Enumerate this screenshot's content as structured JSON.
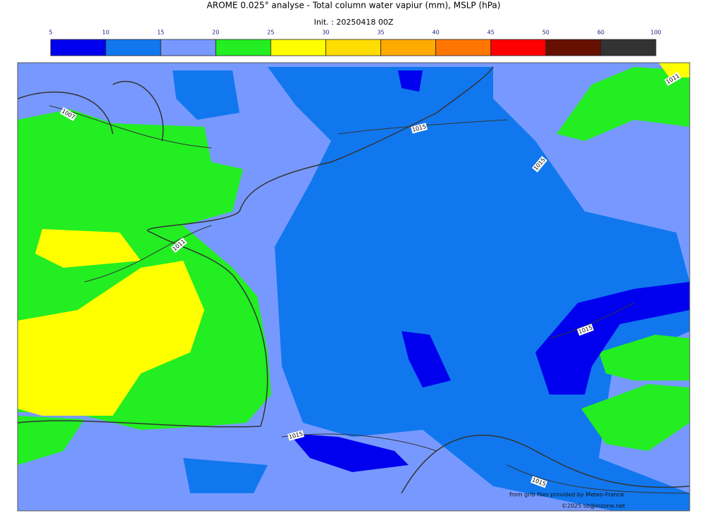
{
  "title": "AROME 0.025° analyse - Total column water vapiur (mm), MSLP (hPa)",
  "subtitle": "Init. : 20250418 00Z",
  "colorbar": {
    "bounds": [
      5,
      10,
      15,
      20,
      25,
      30,
      35,
      40,
      45,
      50,
      60,
      100
    ],
    "colors": [
      "#0000ee",
      "#1177ee",
      "#7799ff",
      "#22ee22",
      "#ffff00",
      "#ffdd00",
      "#ffaa00",
      "#ff7700",
      "#ff0000",
      "#661100",
      "#333333"
    ]
  },
  "isobar_labels": [
    "1007",
    "1011",
    "1015",
    "1015",
    "1011",
    "1015",
    "1015",
    "1015"
  ],
  "credits": {
    "source": "from grib files provided by Meteo-France",
    "copyright": "©2025 sb@inzone.net"
  }
}
